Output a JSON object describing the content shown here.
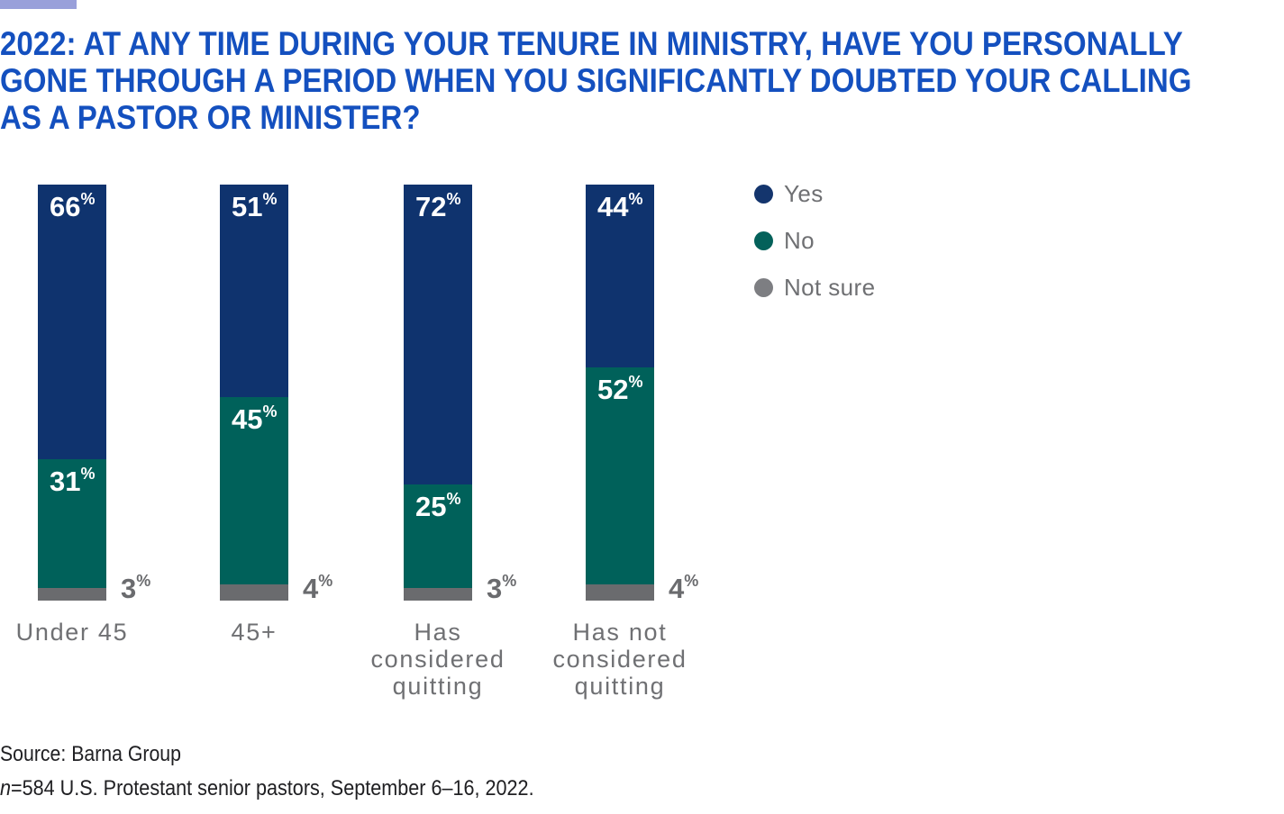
{
  "page": {
    "background": "#ffffff"
  },
  "accent_bar": {
    "color": "#99a0da"
  },
  "title": {
    "text": "2022: AT ANY TIME DURING YOUR TENURE IN MINISTRY, HAVE YOU PERSONALLY GONE THROUGH A PERIOD WHEN YOU SIGNIFICANTLY DOUBTED YOUR CALLING AS A PASTOR OR MINISTER?",
    "lines": [
      "2022: AT ANY TIME DURING YOUR TENURE IN MINISTRY, HAVE YOU PERSONALLY",
      "GONE THROUGH A PERIOD WHEN YOU SIGNIFICANTLY DOUBTED YOUR CALLING",
      "AS A PASTOR OR MINISTER?"
    ],
    "color": "#1450bf"
  },
  "chart_data": {
    "type": "bar",
    "stacked": true,
    "percent_scale": true,
    "title": "2022: At any time during your tenure in ministry, have you personally gone through a period when you significantly doubted your calling as a pastor or minister?",
    "categories": [
      "Under 45",
      "45+",
      "Has considered quitting",
      "Has not considered quitting"
    ],
    "categories_display": [
      "Under 45",
      "45+",
      "Has\nconsidered\nquitting",
      "Has not\nconsidered\nquitting"
    ],
    "series": [
      {
        "name": "Yes",
        "color": "#0f336e",
        "values": [
          66,
          51,
          72,
          44
        ]
      },
      {
        "name": "No",
        "color": "#00615a",
        "values": [
          31,
          45,
          25,
          52
        ]
      },
      {
        "name": "Not sure",
        "color": "#6a6b6e",
        "values": [
          3,
          4,
          3,
          4
        ]
      }
    ],
    "value_suffix": "%",
    "ylim": [
      0,
      100
    ],
    "grid": false,
    "legend_position": "right",
    "inside_label_color": "#ffffff",
    "outside_label_color": "#6a6b6e",
    "category_label_color": "#6f7073"
  },
  "legend": {
    "items": [
      {
        "label": "Yes",
        "color": "#14356d"
      },
      {
        "label": "No",
        "color": "#04615a"
      },
      {
        "label": "Not sure",
        "color": "#7d7e82"
      }
    ],
    "text_color": "#6f7073"
  },
  "footer": {
    "line1": "Source: Barna Group",
    "line2_italic": "n",
    "line2_rest": "=584 U.S. Protestant senior pastors, September 6–16, 2022.",
    "color": "#202023"
  }
}
